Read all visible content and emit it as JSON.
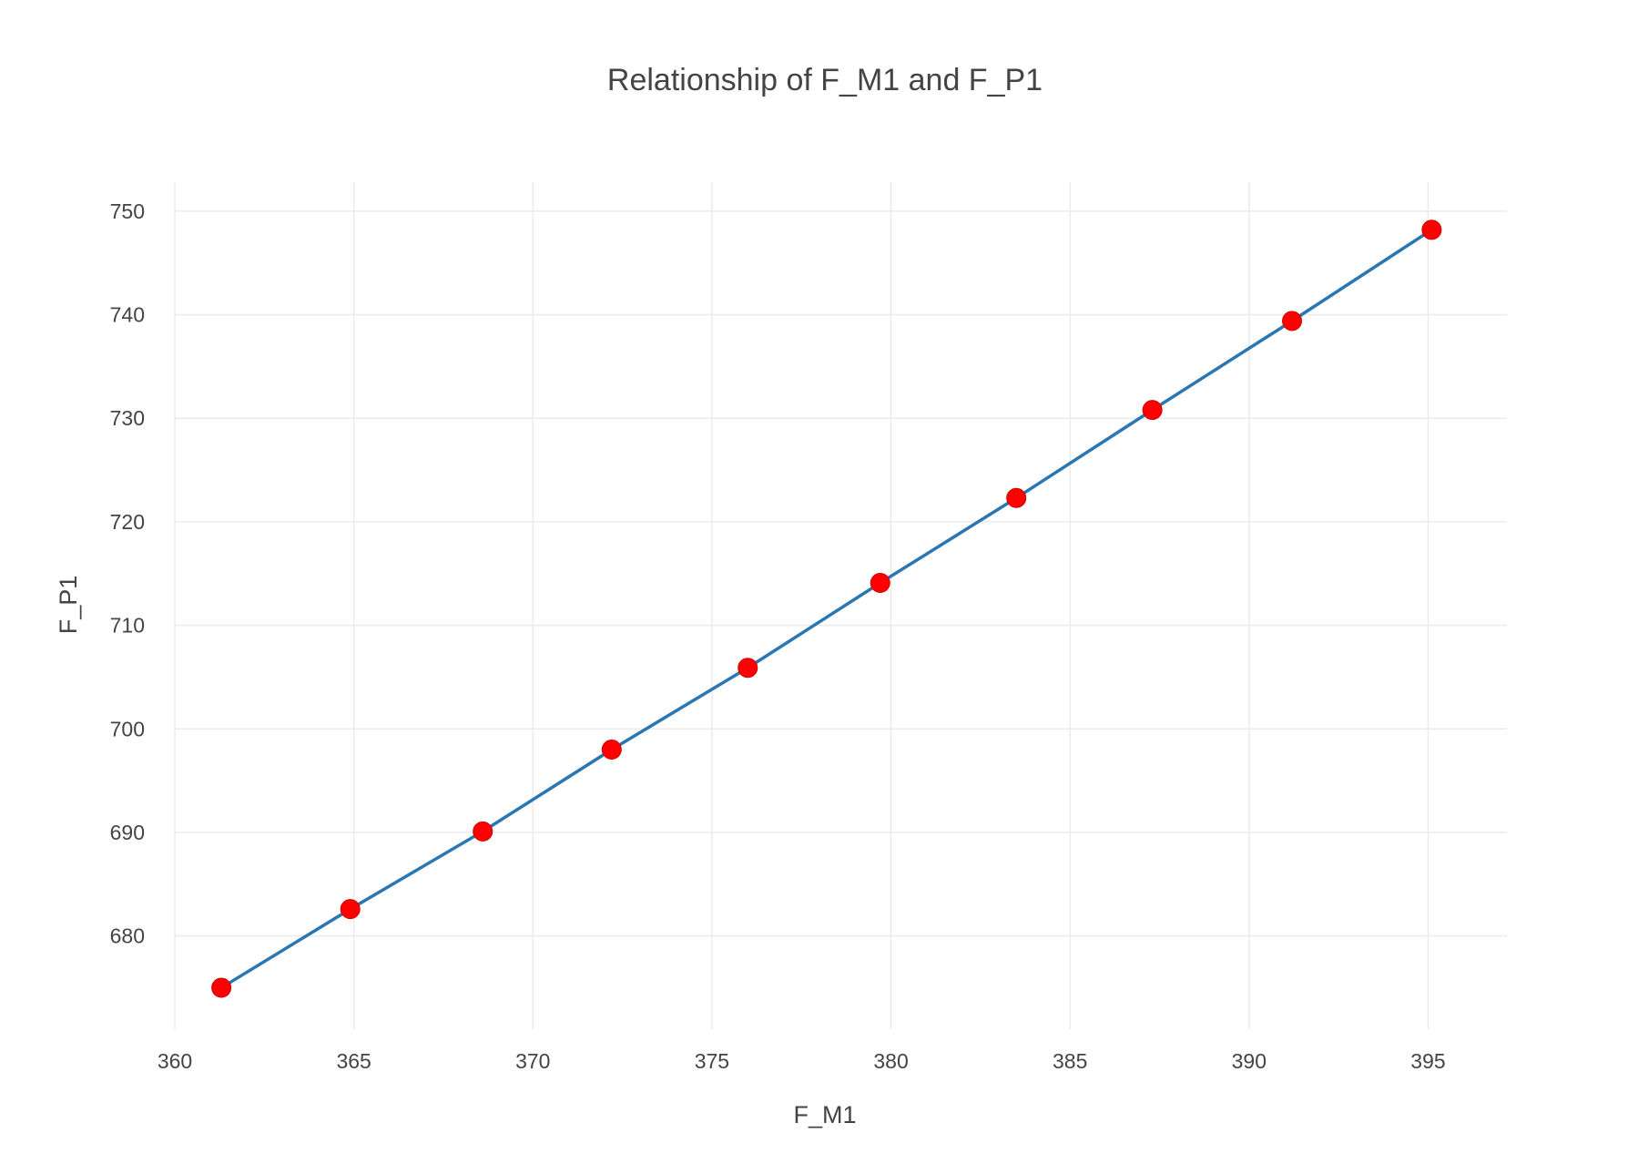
{
  "chart_data": {
    "type": "line",
    "title": "Relationship of F_M1 and F_P1",
    "xlabel": "F_M1",
    "ylabel": "F_P1",
    "xlim": [
      360,
      397.2
    ],
    "ylim": [
      671,
      752.8
    ],
    "x_ticks": [
      360,
      365,
      370,
      375,
      380,
      385,
      390,
      395
    ],
    "y_ticks": [
      680,
      690,
      700,
      710,
      720,
      730,
      740,
      750
    ],
    "grid": true,
    "legend": "none",
    "line_color": "#2a77b4",
    "marker_color": "#ff0000",
    "series": [
      {
        "x": [
          361.3,
          364.9,
          368.6,
          372.2,
          376.0,
          379.7,
          383.5,
          387.3,
          391.2,
          395.1
        ],
        "y": [
          675.0,
          682.6,
          690.1,
          698.0,
          705.9,
          714.1,
          722.3,
          730.8,
          739.4,
          748.2
        ]
      }
    ]
  }
}
